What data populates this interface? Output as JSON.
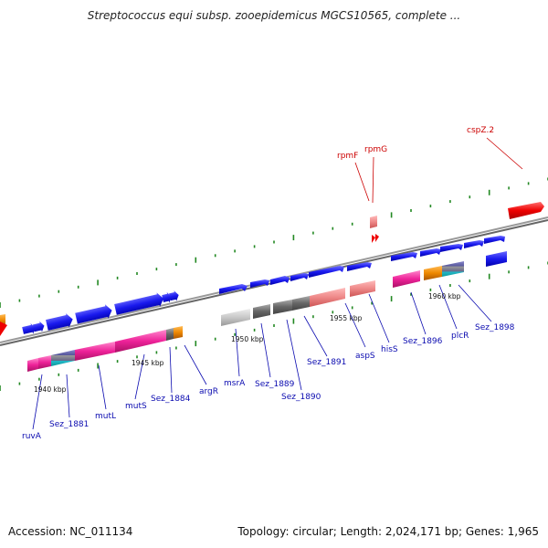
{
  "title": "Streptococcus equi subsp. zooepidemicus MGCS10565, complete ...",
  "footer": {
    "accession": "Accession: NC_011134",
    "summary": "Topology: circular; Length: 2,024,171 bp; Genes: 1,965"
  },
  "ticks": [
    "1940 kbp",
    "1945 kbp",
    "1950 kbp",
    "1955 kbp",
    "1960 kbp"
  ],
  "genes_top": [
    "rpmF",
    "rpmG",
    "cspZ.2"
  ],
  "genes_bottom": [
    "ruvA",
    "Sez_1881",
    "mutL",
    "mutS",
    "Sez_1884",
    "argR",
    "msrA",
    "Sez_1889",
    "Sez_1890",
    "Sez_1891",
    "aspS",
    "hisS",
    "Sez_1896",
    "plcR",
    "Sez_1898"
  ],
  "colors": {
    "forward_cds": "#1a1aee",
    "rna": "#ee0000",
    "pink": "#ee2299",
    "orange": "#ee8800",
    "gray": "#777777",
    "salmon": "#ee8888",
    "cyan": "#22bbcc",
    "backbone": "#888888",
    "grid_dots": "#228822"
  }
}
